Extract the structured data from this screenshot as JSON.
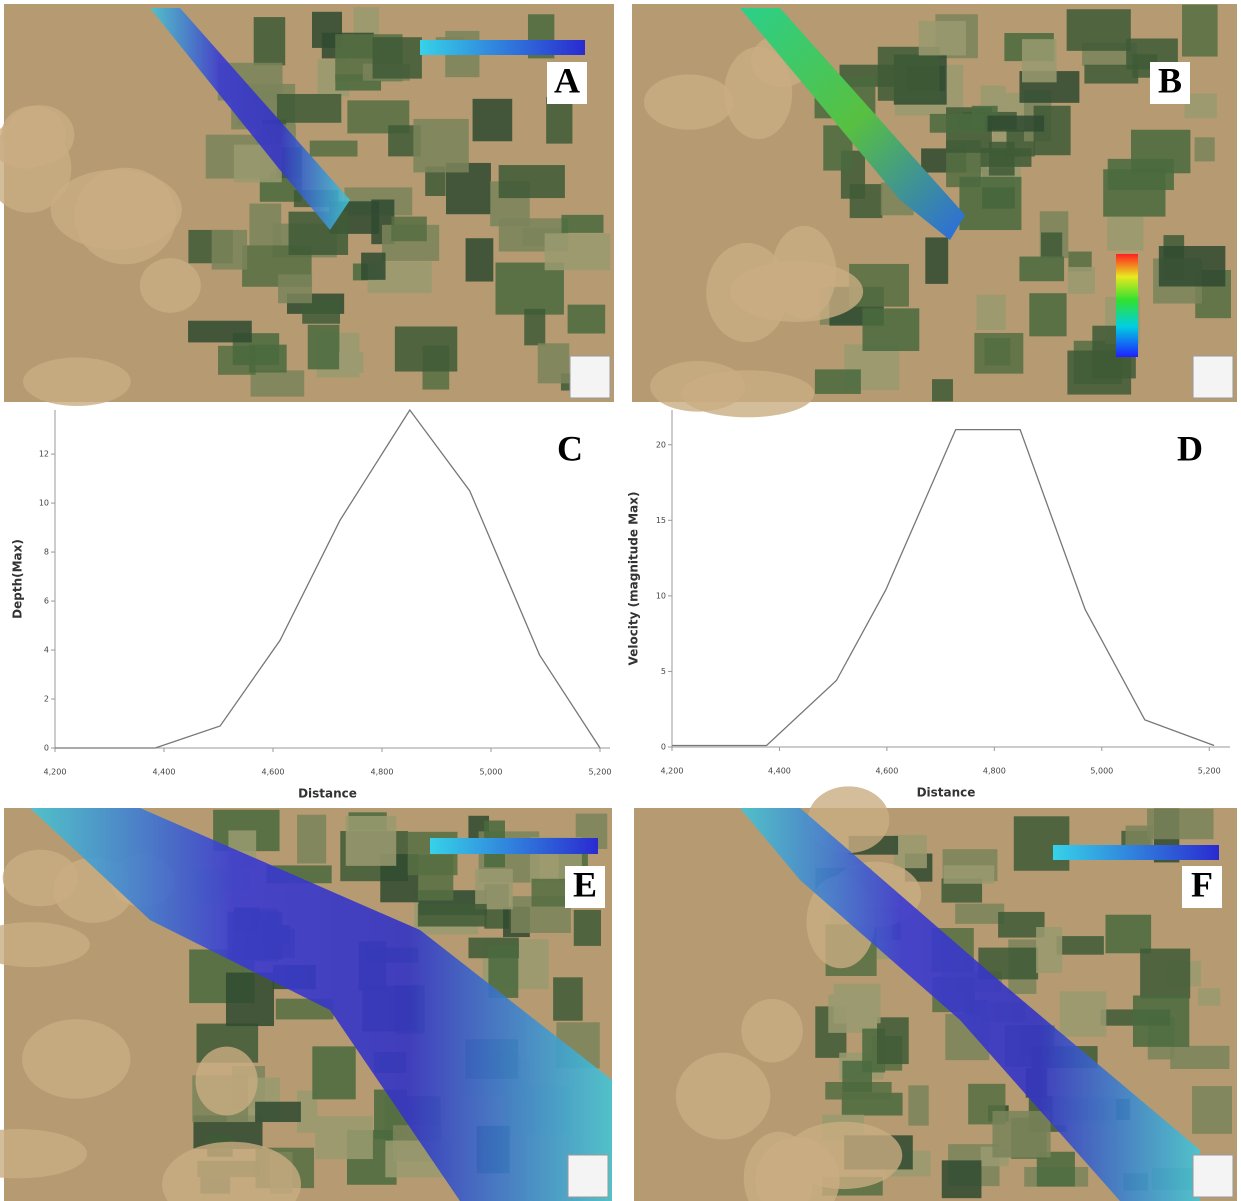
{
  "panel_labels": [
    "A",
    "B",
    "E",
    "F"
  ],
  "chart_data": [
    {
      "type": "line",
      "annotation": "C",
      "x_label": "Distance",
      "y_label": "Depth(Max)",
      "x": [
        4200,
        4384,
        4503,
        4613,
        4723,
        4851,
        4961,
        5089,
        5200
      ],
      "values": [
        0,
        0,
        0.9,
        4.4,
        9.3,
        13.8,
        10.5,
        3.8,
        0
      ],
      "color": "#777777",
      "xlim": [
        4200,
        5200
      ],
      "ylim": [
        0,
        13.8
      ],
      "xticks": [
        {
          "value": 4200,
          "label": "4,200"
        },
        {
          "value": 4400,
          "label": "4,400"
        },
        {
          "value": 4600,
          "label": "4,600"
        },
        {
          "value": 4800,
          "label": "4,800"
        },
        {
          "value": 5000,
          "label": "5,000"
        },
        {
          "value": 5200,
          "label": "5,200"
        }
      ],
      "yticks": [
        0,
        2,
        4,
        6,
        8,
        10,
        12
      ]
    },
    {
      "type": "line",
      "annotation": "D",
      "x_label": "Distance",
      "y_label": "Velocity (magnitude Max)",
      "x": [
        4200,
        4376,
        4506,
        4598,
        4728,
        4848,
        4969,
        5080,
        5209
      ],
      "values": [
        0.1,
        0.1,
        4.4,
        10.4,
        21,
        21,
        9.1,
        1.8,
        0.1
      ],
      "color": "#777777",
      "xlim": [
        4200,
        5220
      ],
      "ylim": [
        0,
        22.3
      ],
      "xticks": [
        {
          "value": 4200,
          "label": "4,200"
        },
        {
          "value": 4400,
          "label": "4,400"
        },
        {
          "value": 4600,
          "label": "4,600"
        },
        {
          "value": 4800,
          "label": "4,800"
        },
        {
          "value": 5000,
          "label": "5,000"
        },
        {
          "value": 5200,
          "label": "5,200"
        }
      ],
      "yticks": [
        0,
        5,
        10,
        15,
        20
      ]
    }
  ]
}
